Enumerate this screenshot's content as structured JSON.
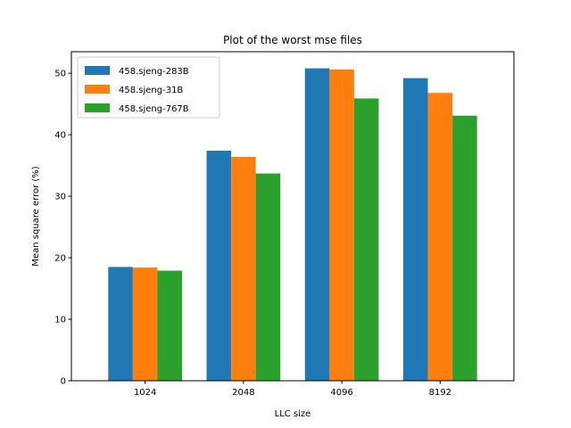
{
  "chart_data": {
    "type": "bar",
    "title": "Plot of the worst mse files",
    "xlabel": "LLC size",
    "ylabel": "Mean square error (%)",
    "categories": [
      "1024",
      "2048",
      "4096",
      "8192"
    ],
    "ylim": [
      0,
      53.5
    ],
    "yticks": [
      0,
      10,
      20,
      30,
      40,
      50
    ],
    "legend_position": "upper-left",
    "series": [
      {
        "name": "458.sjeng-283B",
        "color": "#1f77b4",
        "values": [
          18.5,
          37.4,
          50.8,
          49.2
        ]
      },
      {
        "name": "458.sjeng-31B",
        "color": "#ff7f0e",
        "values": [
          18.4,
          36.4,
          50.6,
          46.8
        ]
      },
      {
        "name": "458.sjeng-767B",
        "color": "#2ca02c",
        "values": [
          17.9,
          33.7,
          45.9,
          43.1
        ]
      }
    ]
  }
}
